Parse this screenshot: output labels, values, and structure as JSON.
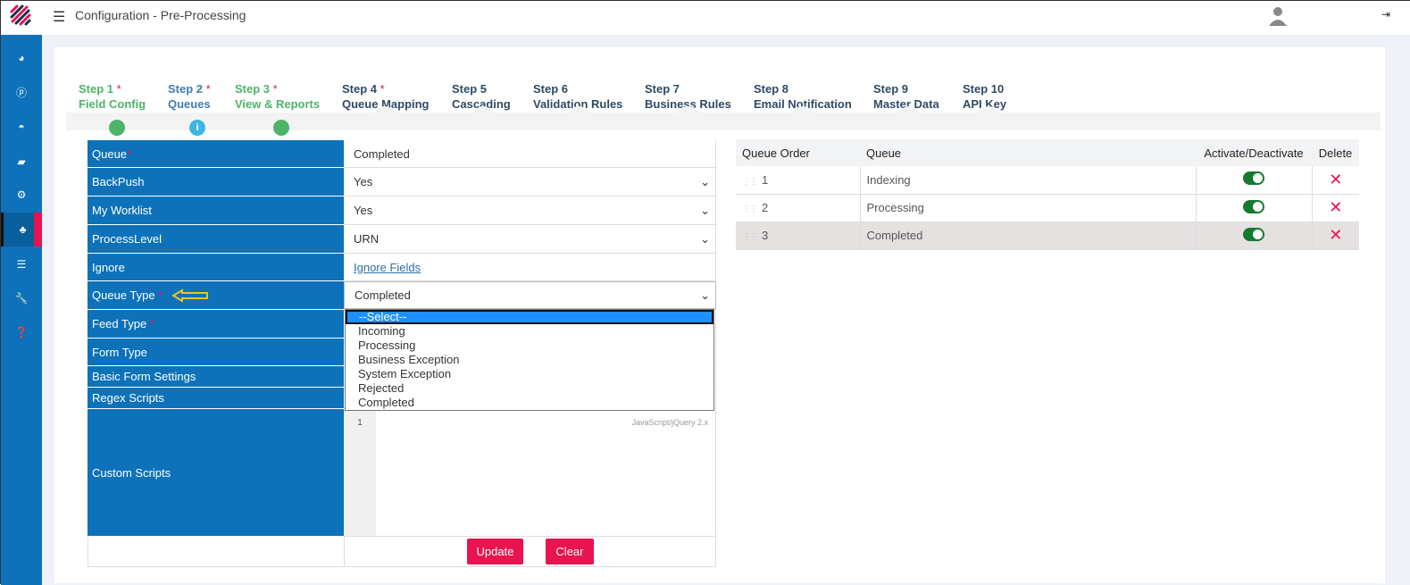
{
  "header": {
    "title": "Configuration - Pre-Processing"
  },
  "sidebar": {
    "items": [
      {
        "icon": "pie-chart-icon"
      },
      {
        "icon": "p-circle-icon"
      },
      {
        "icon": "dashboard-icon"
      },
      {
        "icon": "book-icon"
      },
      {
        "icon": "cogs-icon"
      },
      {
        "icon": "sitemap-icon",
        "active": true
      },
      {
        "icon": "sliders-icon"
      },
      {
        "icon": "wrench-icon"
      },
      {
        "icon": "help-icon"
      }
    ]
  },
  "steps": [
    {
      "step": "Step 1",
      "label": "Field Config",
      "required": "*",
      "status": "complete"
    },
    {
      "step": "Step 2",
      "label": "Queues",
      "required": "*",
      "status": "current"
    },
    {
      "step": "Step 3",
      "label": "View & Reports",
      "required": "*",
      "status": "complete"
    },
    {
      "step": "Step 4",
      "label": "Queue Mapping",
      "required": "*",
      "status": "pending"
    },
    {
      "step": "Step 5",
      "label": "Cascading",
      "required": "",
      "status": "pending"
    },
    {
      "step": "Step 6",
      "label": "Validation Rules",
      "required": "",
      "status": "pending"
    },
    {
      "step": "Step 7",
      "label": "Business Rules",
      "required": "",
      "status": "pending"
    },
    {
      "step": "Step 8",
      "label": "Email Notification",
      "required": "",
      "status": "pending"
    },
    {
      "step": "Step 9",
      "label": "Master Data",
      "required": "",
      "status": "pending"
    },
    {
      "step": "Step 10",
      "label": "API Key",
      "required": "",
      "status": "pending"
    }
  ],
  "form": {
    "queue": {
      "label": "Queue",
      "req": "*",
      "value": "Completed"
    },
    "backpush": {
      "label": "BackPush",
      "value": "Yes"
    },
    "worklist": {
      "label": "My Worklist",
      "value": "Yes"
    },
    "processlevel": {
      "label": "ProcessLevel",
      "value": "URN"
    },
    "ignore": {
      "label": "Ignore",
      "link": "Ignore Fields"
    },
    "queuetype": {
      "label": "Queue Type",
      "req": "*",
      "value": "Completed"
    },
    "feedtype": {
      "label": "Feed Type",
      "req": "*"
    },
    "formtype": {
      "label": "Form Type"
    },
    "basic": {
      "label": "Basic Form Settings"
    },
    "regex": {
      "label": "Regex Scripts"
    },
    "custom": {
      "label": "Custom Scripts",
      "line": "1",
      "mode": "JavaScript/jQuery 2.x"
    },
    "update": "Update",
    "clear": "Clear"
  },
  "queue_type_options": [
    "--Select--",
    "Incoming",
    "Processing",
    "Business Exception",
    "System Exception",
    "Rejected",
    "Completed"
  ],
  "queue_table": {
    "headers": [
      "Queue Order",
      "Queue",
      "Activate/Deactivate",
      "Delete"
    ],
    "rows": [
      {
        "order": "1",
        "queue": "Indexing",
        "active": true
      },
      {
        "order": "2",
        "queue": "Processing",
        "active": true
      },
      {
        "order": "3",
        "queue": "Completed",
        "active": true
      }
    ]
  }
}
